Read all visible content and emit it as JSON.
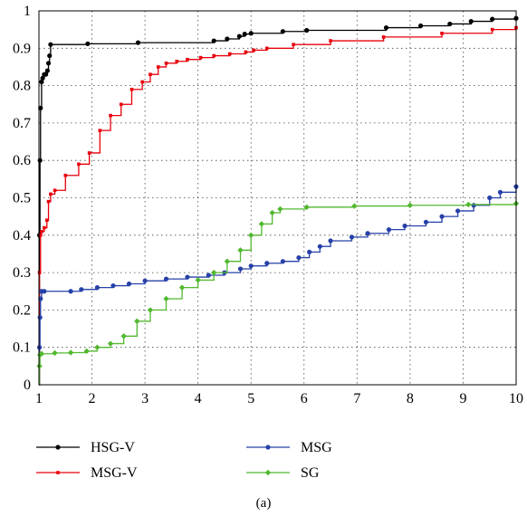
{
  "caption": "(a)",
  "chart_data": {
    "type": "line",
    "title": "",
    "xlabel": "",
    "ylabel": "",
    "xlim": [
      1,
      10
    ],
    "ylim": [
      0,
      1
    ],
    "grid": true,
    "legend_position": "bottom",
    "x_ticks": [
      1,
      2,
      3,
      4,
      5,
      6,
      7,
      8,
      9,
      10
    ],
    "y_ticks": [
      0,
      0.1,
      0.2,
      0.3,
      0.4,
      0.5,
      0.6,
      0.7,
      0.8,
      0.9,
      1
    ],
    "y_tick_labels": [
      "0",
      "0.1",
      "0.2",
      "0.3",
      "0.4",
      "0.5",
      "0.6",
      "0.7",
      "0.8",
      "0.9",
      "1"
    ],
    "series": [
      {
        "name": "HSG-V",
        "color": "#000000",
        "marker": "circle",
        "x": [
          1.0,
          1.01,
          1.02,
          1.03,
          1.05,
          1.07,
          1.1,
          1.13,
          1.16,
          1.18,
          1.2,
          1.22,
          1.92,
          2.87,
          4.3,
          4.55,
          4.78,
          4.88,
          5.0,
          5.6,
          6.05,
          7.55,
          8.2,
          8.75,
          9.15,
          9.55,
          10.0
        ],
        "y": [
          0.0,
          0.4,
          0.6,
          0.74,
          0.81,
          0.82,
          0.83,
          0.83,
          0.84,
          0.86,
          0.88,
          0.91,
          0.912,
          0.915,
          0.92,
          0.925,
          0.932,
          0.938,
          0.94,
          0.945,
          0.948,
          0.955,
          0.96,
          0.965,
          0.972,
          0.978,
          0.98
        ]
      },
      {
        "name": "MSG-V",
        "color": "#e8000b",
        "marker": "square",
        "x": [
          1.0,
          1.01,
          1.03,
          1.05,
          1.1,
          1.15,
          1.18,
          1.22,
          1.3,
          1.5,
          1.75,
          1.95,
          2.15,
          2.35,
          2.55,
          2.75,
          2.95,
          3.1,
          3.25,
          3.4,
          3.6,
          3.8,
          4.05,
          4.3,
          4.6,
          4.9,
          5.05,
          5.3,
          5.8,
          6.5,
          7.5,
          8.6,
          9.55,
          10.0
        ],
        "y": [
          0.0,
          0.3,
          0.4,
          0.41,
          0.42,
          0.44,
          0.49,
          0.51,
          0.52,
          0.56,
          0.59,
          0.62,
          0.68,
          0.72,
          0.75,
          0.79,
          0.81,
          0.83,
          0.85,
          0.86,
          0.865,
          0.87,
          0.875,
          0.88,
          0.885,
          0.89,
          0.895,
          0.9,
          0.91,
          0.92,
          0.93,
          0.94,
          0.95,
          0.955
        ]
      },
      {
        "name": "MSG",
        "color": "#2741a8",
        "marker": "circle",
        "x": [
          1.0,
          1.01,
          1.02,
          1.03,
          1.05,
          1.1,
          1.6,
          1.8,
          2.1,
          2.4,
          2.7,
          3.0,
          3.4,
          3.8,
          4.2,
          4.5,
          4.8,
          5.0,
          5.3,
          5.6,
          5.9,
          6.1,
          6.3,
          6.5,
          6.9,
          7.2,
          7.6,
          7.9,
          8.3,
          8.6,
          8.9,
          9.2,
          9.5,
          9.7,
          10.0
        ],
        "y": [
          0.0,
          0.1,
          0.18,
          0.23,
          0.25,
          0.25,
          0.25,
          0.255,
          0.26,
          0.265,
          0.27,
          0.278,
          0.283,
          0.288,
          0.293,
          0.3,
          0.31,
          0.318,
          0.325,
          0.33,
          0.34,
          0.355,
          0.37,
          0.385,
          0.395,
          0.405,
          0.415,
          0.425,
          0.435,
          0.45,
          0.465,
          0.48,
          0.5,
          0.515,
          0.53
        ]
      },
      {
        "name": "SG",
        "color": "#52b830",
        "marker": "diamond",
        "x": [
          1.0,
          1.01,
          1.02,
          1.05,
          1.3,
          1.6,
          1.9,
          2.1,
          2.35,
          2.6,
          2.85,
          3.1,
          3.4,
          3.7,
          4.0,
          4.3,
          4.55,
          4.8,
          5.0,
          5.2,
          5.4,
          5.55,
          6.05,
          6.95,
          8.0,
          9.1,
          10.0
        ],
        "y": [
          0.0,
          0.05,
          0.08,
          0.083,
          0.085,
          0.086,
          0.09,
          0.1,
          0.11,
          0.13,
          0.17,
          0.2,
          0.23,
          0.26,
          0.28,
          0.3,
          0.33,
          0.36,
          0.4,
          0.43,
          0.46,
          0.47,
          0.475,
          0.478,
          0.48,
          0.482,
          0.485
        ]
      }
    ]
  }
}
